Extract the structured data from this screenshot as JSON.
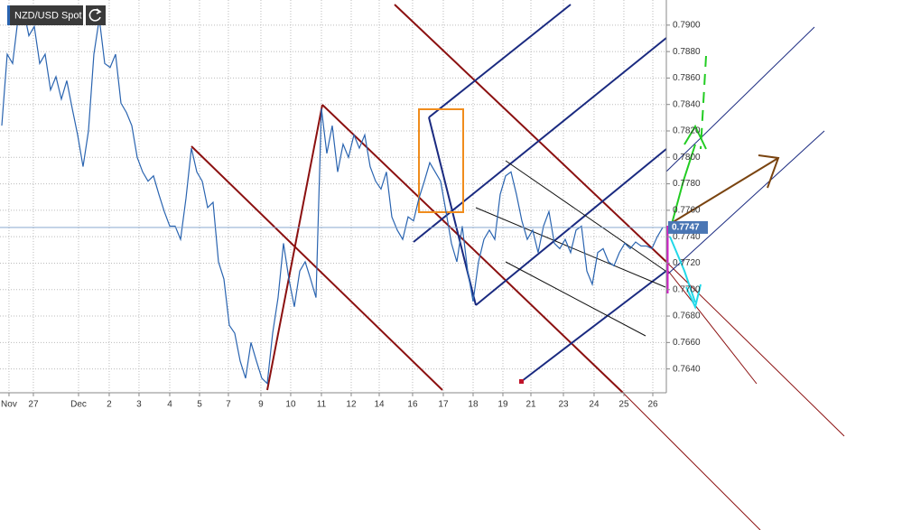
{
  "chart_data": {
    "type": "line",
    "title": "NZD/USD Spot",
    "x": [
      0,
      1,
      2,
      3,
      4,
      5,
      6,
      7,
      8,
      9,
      10,
      11,
      12,
      13,
      14,
      15,
      16,
      17,
      18,
      19,
      20,
      21,
      22,
      23,
      24,
      25,
      26,
      27,
      28,
      29,
      30,
      31,
      32,
      33,
      34,
      35,
      36,
      37,
      38,
      39,
      40,
      41,
      42,
      43,
      44,
      45,
      46,
      47,
      48,
      49,
      50,
      51,
      52,
      53,
      54,
      55,
      56,
      57,
      58,
      59,
      60,
      61,
      62,
      63,
      64,
      65,
      66,
      67,
      68,
      69,
      70,
      71,
      72,
      73,
      74,
      75,
      76,
      77,
      78,
      79,
      80,
      81,
      82,
      83,
      84,
      85,
      86,
      87,
      88,
      89,
      90,
      91,
      92,
      93,
      94,
      95,
      96,
      97,
      98,
      99,
      100,
      101,
      102,
      103,
      104,
      105,
      106,
      107,
      108,
      109,
      110,
      111,
      112,
      113,
      114,
      115,
      116,
      117,
      118,
      119,
      120,
      121,
      122
    ],
    "series": [
      {
        "name": "NZD/USD Spot",
        "color": "#2a64b0",
        "values": [
          0.7824,
          0.7878,
          0.7871,
          0.7905,
          0.7912,
          0.7892,
          0.7899,
          0.7871,
          0.7878,
          0.7851,
          0.7861,
          0.7844,
          0.7858,
          0.7837,
          0.7817,
          0.7793,
          0.782,
          0.7878,
          0.7905,
          0.7871,
          0.7868,
          0.7878,
          0.7841,
          0.7834,
          0.7824,
          0.78,
          0.7789,
          0.7782,
          0.7786,
          0.7772,
          0.7759,
          0.7748,
          0.7748,
          0.7738,
          0.7769,
          0.7807,
          0.7789,
          0.7782,
          0.7762,
          0.7766,
          0.7721,
          0.7708,
          0.7673,
          0.7667,
          0.7646,
          0.7633,
          0.766,
          0.7646,
          0.7633,
          0.7629,
          0.7667,
          0.7694,
          0.7735,
          0.7708,
          0.7687,
          0.7714,
          0.7721,
          0.7708,
          0.7694,
          0.7837,
          0.7803,
          0.7824,
          0.7789,
          0.781,
          0.78,
          0.7817,
          0.7807,
          0.7817,
          0.7793,
          0.7782,
          0.7776,
          0.7789,
          0.7755,
          0.7745,
          0.7738,
          0.7755,
          0.7752,
          0.7769,
          0.7782,
          0.7796,
          0.7789,
          0.7782,
          0.7759,
          0.7735,
          0.7721,
          0.7748,
          0.7714,
          0.7691,
          0.7721,
          0.7738,
          0.7745,
          0.7738,
          0.7772,
          0.7786,
          0.7789,
          0.7772,
          0.7752,
          0.7738,
          0.7745,
          0.7728,
          0.7748,
          0.7759,
          0.7735,
          0.7731,
          0.7738,
          0.7728,
          0.7745,
          0.7748,
          0.7714,
          0.7704,
          0.7728,
          0.7731,
          0.7721,
          0.7718,
          0.7728,
          0.7735,
          0.7731,
          0.7736,
          0.7733,
          0.7733,
          0.7731,
          0.774,
          0.7747
        ]
      }
    ],
    "xlim": [
      -0.33,
      122.67
    ],
    "xticks": [
      {
        "value": 1.33,
        "label": "Nov"
      },
      {
        "value": 5.83,
        "label": "27"
      },
      {
        "value": 14.17,
        "label": "Dec"
      },
      {
        "value": 19.83,
        "label": "2"
      },
      {
        "value": 25.33,
        "label": "3"
      },
      {
        "value": 31,
        "label": "4"
      },
      {
        "value": 36.5,
        "label": "5"
      },
      {
        "value": 41.83,
        "label": "7"
      },
      {
        "value": 47.83,
        "label": "9"
      },
      {
        "value": 53.33,
        "label": "10"
      },
      {
        "value": 59,
        "label": "11"
      },
      {
        "value": 64.5,
        "label": "12"
      },
      {
        "value": 69.67,
        "label": "14"
      },
      {
        "value": 75.83,
        "label": "16"
      },
      {
        "value": 81.5,
        "label": "17"
      },
      {
        "value": 87,
        "label": "18"
      },
      {
        "value": 92.5,
        "label": "19"
      },
      {
        "value": 97.67,
        "label": "21"
      },
      {
        "value": 103.67,
        "label": "23"
      },
      {
        "value": 109.33,
        "label": "24"
      },
      {
        "value": 114.83,
        "label": "25"
      },
      {
        "value": 120.17,
        "label": "26"
      }
    ],
    "ylim": [
      0.7622,
      0.7919
    ],
    "yticks": [
      {
        "value": 0.764,
        "label": "0.7640"
      },
      {
        "value": 0.766,
        "label": "0.7660"
      },
      {
        "value": 0.768,
        "label": "0.7680"
      },
      {
        "value": 0.77,
        "label": "0.7700"
      },
      {
        "value": 0.772,
        "label": "0.7720"
      },
      {
        "value": 0.774,
        "label": "0.7740"
      },
      {
        "value": 0.776,
        "label": "0.7760"
      },
      {
        "value": 0.778,
        "label": "0.7780"
      },
      {
        "value": 0.78,
        "label": "0.7800"
      },
      {
        "value": 0.782,
        "label": "0.7820"
      },
      {
        "value": 0.784,
        "label": "0.7840"
      },
      {
        "value": 0.786,
        "label": "0.7860"
      },
      {
        "value": 0.788,
        "label": "0.7880"
      },
      {
        "value": 0.79,
        "label": "0.7900"
      }
    ],
    "last_price": {
      "value": 0.7747,
      "label": "0.7747"
    },
    "grid": true
  }
}
